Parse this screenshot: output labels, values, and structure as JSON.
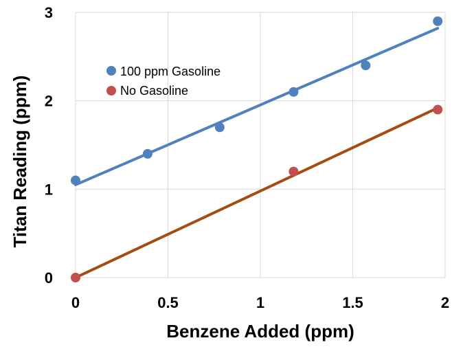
{
  "chart_data": {
    "type": "scatter",
    "title": "",
    "xlabel": "Benzene Added (ppm)",
    "ylabel": "Titan Reading (ppm)",
    "xlim": [
      0,
      2
    ],
    "ylim": [
      0,
      3
    ],
    "x_ticks": [
      0,
      0.5,
      1,
      1.5,
      2
    ],
    "x_tick_labels": [
      "0",
      "0.5",
      "1",
      "1.5",
      "2"
    ],
    "y_ticks": [
      0,
      1,
      2,
      3
    ],
    "y_tick_labels": [
      "0",
      "1",
      "2",
      "3"
    ],
    "grid": true,
    "legend_position": "upper-left",
    "series": [
      {
        "name": "100 ppm Gasoline",
        "color": "#4f81bd",
        "trendline_color": "#4f81bd",
        "x": [
          0,
          0.39,
          0.78,
          1.18,
          1.57,
          1.96
        ],
        "y": [
          1.1,
          1.4,
          1.7,
          2.1,
          2.4,
          2.9
        ],
        "trendline": {
          "x": [
            0,
            1.96
          ],
          "y": [
            1.05,
            2.82
          ]
        }
      },
      {
        "name": "No Gasoline",
        "color": "#c0504d",
        "trendline_color": "#a64b12",
        "x": [
          0,
          1.18,
          1.96
        ],
        "y": [
          0,
          1.2,
          1.9
        ],
        "trendline": {
          "x": [
            0,
            1.96
          ],
          "y": [
            0.0,
            1.92
          ]
        }
      }
    ]
  }
}
